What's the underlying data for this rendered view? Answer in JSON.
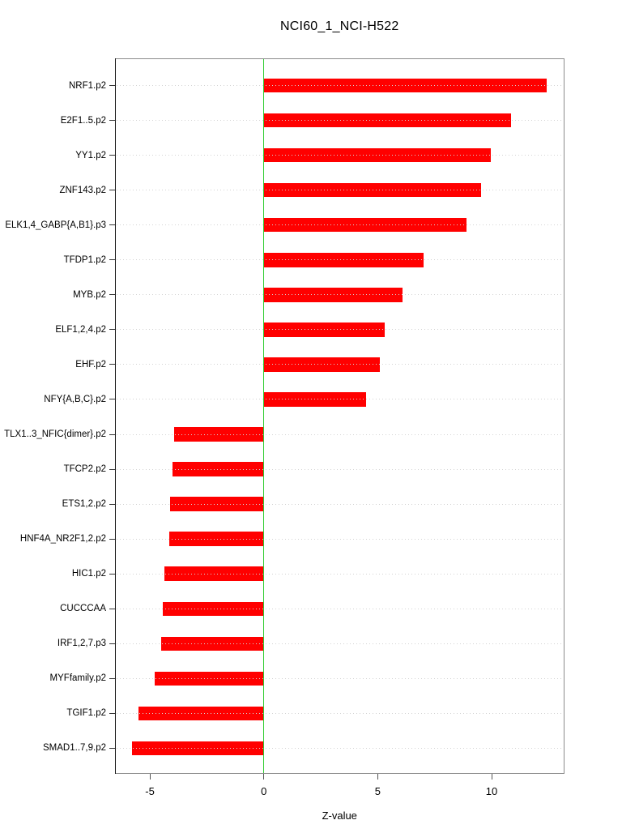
{
  "title": "NCI60_1_NCI-H522",
  "chart_data": {
    "type": "bar",
    "orientation": "horizontal",
    "title": "NCI60_1_NCI-H522",
    "xlabel": "Z-value",
    "categories": [
      "NRF1.p2",
      "E2F1..5.p2",
      "YY1.p2",
      "ZNF143.p2",
      "ELK1,4_GABP{A,B1}.p3",
      "TFDP1.p2",
      "MYB.p2",
      "ELF1,2,4.p2",
      "EHF.p2",
      "NFY{A,B,C}.p2",
      "TLX1..3_NFIC{dimer}.p2",
      "TFCP2.p2",
      "ETS1,2.p2",
      "HNF4A_NR2F1,2.p2",
      "HIC1.p2",
      "CUCCCAA",
      "IRF1,2,7.p3",
      "MYFfamily.p2",
      "TGIF1.p2",
      "SMAD1..7,9.p2"
    ],
    "values": [
      12.4,
      10.85,
      9.95,
      9.55,
      8.9,
      7.0,
      6.1,
      5.3,
      5.1,
      4.5,
      -3.95,
      -4.0,
      -4.1,
      -4.15,
      -4.35,
      -4.45,
      -4.5,
      -4.8,
      -5.5,
      -5.8
    ],
    "xlim": [
      -6.53,
      13.18
    ],
    "xticks": [
      -5,
      0,
      5,
      10
    ],
    "zero_line": 0,
    "grid": "dotted-horizontal-per-category",
    "legend": null,
    "colors": {
      "bar": "#ff0000",
      "zero_line": "#2fcc2f",
      "grid_line": "#d3d3d3",
      "frame": "#8c8c8c",
      "axis": "#1a1a1a",
      "text": "#000000"
    }
  }
}
